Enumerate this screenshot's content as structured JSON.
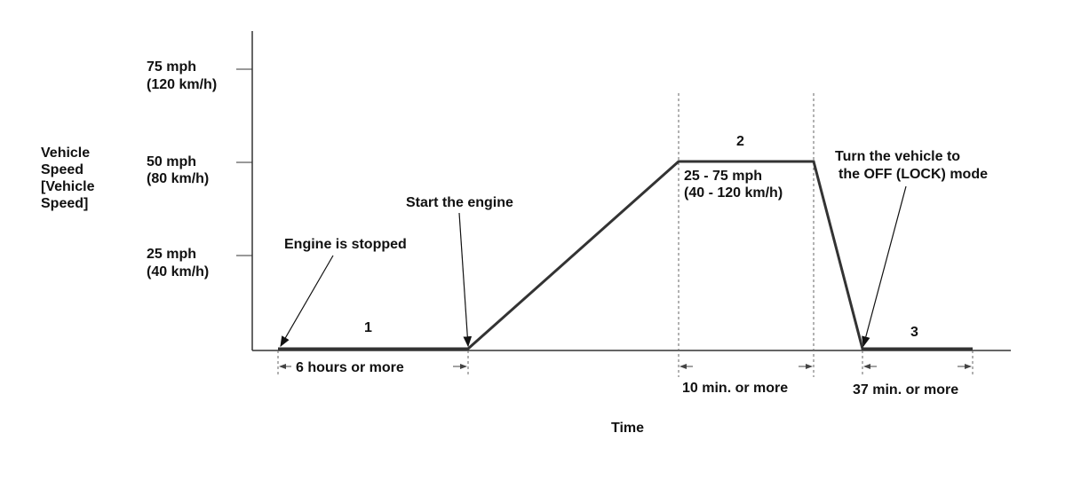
{
  "y_axis_label": [
    "Vehicle",
    "Speed",
    "[Vehicle",
    "Speed]"
  ],
  "x_axis_label": "Time",
  "ticks": [
    {
      "speed_mph": 75,
      "line1": "75 mph",
      "line2": "(120 km/h)"
    },
    {
      "speed_mph": 50,
      "line1": "50 mph",
      "line2": "(80 km/h)"
    },
    {
      "speed_mph": 25,
      "line1": "25 mph",
      "line2": "(40 km/h)"
    }
  ],
  "phases": {
    "p1": "1",
    "p2": "2",
    "p3": "3"
  },
  "annotations": {
    "engine_stopped": "Engine is stopped",
    "start_engine": "Start the engine",
    "speed_range_1": "25 - 75 mph",
    "speed_range_2": "(40 - 120 km/h)",
    "turn_off_1": "Turn the vehicle to",
    "turn_off_2": "the OFF (LOCK) mode"
  },
  "durations": {
    "d1": "6 hours or more",
    "d2": "10 min. or more",
    "d3": "37 min. or more"
  },
  "colors": {
    "line": "#333333"
  }
}
